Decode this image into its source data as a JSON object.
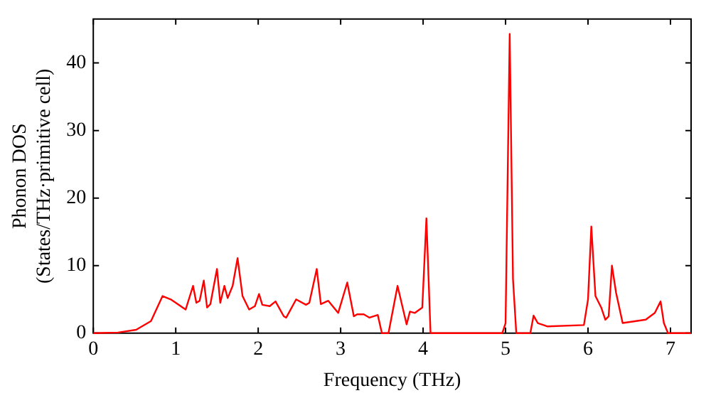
{
  "chart_data": {
    "type": "line",
    "xlabel": "Frequency (THz)",
    "ylabel": "Phonon DOS\n(States/THz·primitive cell)",
    "xlim": [
      0,
      7.25
    ],
    "ylim": [
      0,
      46.5
    ],
    "xticks": [
      0,
      1,
      2,
      3,
      4,
      5,
      6,
      7
    ],
    "yticks": [
      0,
      10,
      20,
      30,
      40
    ],
    "grid": false,
    "legend": false,
    "marker": "none",
    "line_style": "solid",
    "series": [
      {
        "color": "#ff0000",
        "x": [
          0,
          0.3,
          0.52,
          0.7,
          0.84,
          0.94,
          1.12,
          1.21,
          1.25,
          1.29,
          1.34,
          1.38,
          1.42,
          1.5,
          1.54,
          1.59,
          1.63,
          1.69,
          1.75,
          1.81,
          1.89,
          1.96,
          2.01,
          2.05,
          2.14,
          2.21,
          2.31,
          2.34,
          2.46,
          2.58,
          2.62,
          2.71,
          2.76,
          2.85,
          2.97,
          3.08,
          3.16,
          3.2,
          3.28,
          3.35,
          3.45,
          3.5,
          3.58,
          3.69,
          3.8,
          3.84,
          3.9,
          3.99,
          4.04,
          4.09,
          4.31,
          4.96,
          5.0,
          5.05,
          5.09,
          5.13,
          5.3,
          5.34,
          5.39,
          5.51,
          5.95,
          6.0,
          6.04,
          6.09,
          6.16,
          6.21,
          6.25,
          6.29,
          6.34,
          6.42,
          6.7,
          6.81,
          6.88,
          6.92,
          6.97,
          7.25
        ],
        "values": [
          0,
          0.1,
          0.5,
          1.8,
          5.5,
          5,
          3.5,
          7,
          4.5,
          4.8,
          7.8,
          3.8,
          4.3,
          9.5,
          4.5,
          7,
          5.2,
          7,
          11.1,
          5.5,
          3.5,
          4,
          5.8,
          4.2,
          4,
          4.7,
          2.5,
          2.3,
          5,
          4.2,
          4.5,
          9.5,
          4.3,
          4.8,
          3,
          7.5,
          2.5,
          2.8,
          2.8,
          2.3,
          2.7,
          0,
          0,
          7,
          1.3,
          3.2,
          3,
          3.8,
          17,
          0,
          0,
          0,
          1.5,
          44.3,
          8,
          0,
          0,
          2.6,
          1.5,
          1,
          1.2,
          5,
          15.8,
          5.5,
          3.8,
          2,
          2.5,
          10,
          6,
          1.5,
          2,
          3,
          4.7,
          1.5,
          0,
          0
        ]
      }
    ]
  }
}
